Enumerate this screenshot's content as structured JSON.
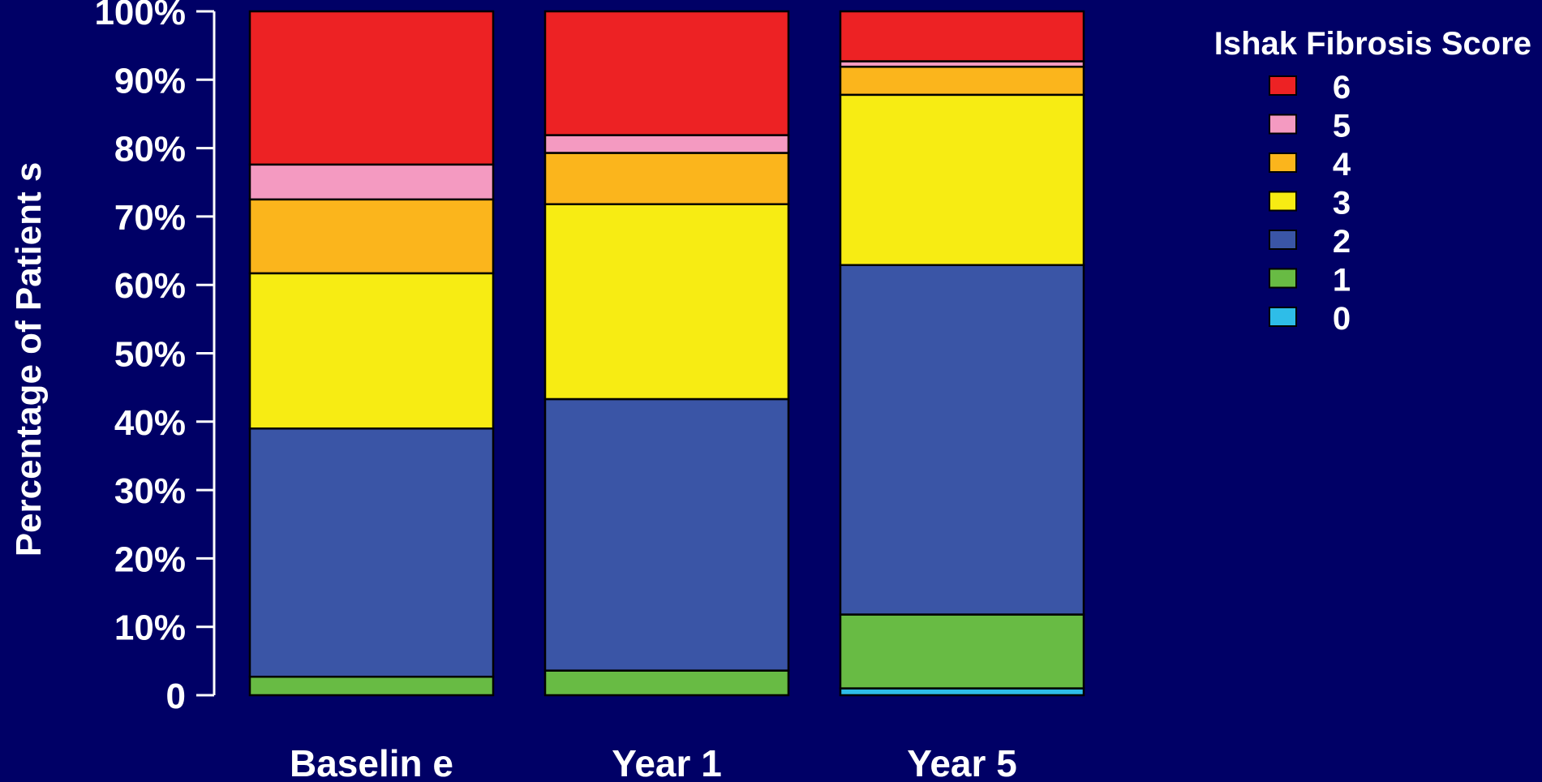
{
  "chart_data": {
    "type": "bar",
    "stacked": true,
    "categories": [
      "Baselin e",
      "Year 1",
      "Year 5"
    ],
    "series": [
      {
        "name": "0",
        "color": "#2ebde8",
        "values": [
          0.0,
          0.0,
          1.0
        ]
      },
      {
        "name": "1",
        "color": "#68bb44",
        "values": [
          2.7,
          3.6,
          10.8
        ]
      },
      {
        "name": "2",
        "color": "#3a55a6",
        "values": [
          36.3,
          39.7,
          51.1
        ]
      },
      {
        "name": "3",
        "color": "#f7ec13",
        "values": [
          22.7,
          28.5,
          24.9
        ]
      },
      {
        "name": "4",
        "color": "#fbb51c",
        "values": [
          10.8,
          7.5,
          4.1
        ]
      },
      {
        "name": "5",
        "color": "#f49ac1",
        "values": [
          5.1,
          2.6,
          0.8
        ]
      },
      {
        "name": "6",
        "color": "#ed2224",
        "values": [
          22.4,
          18.1,
          7.3
        ]
      }
    ],
    "y_ticks": [
      "0",
      "10%",
      "20%",
      "30%",
      "40%",
      "50%",
      "60%",
      "70%",
      "80%",
      "90%",
      "100%"
    ],
    "ylim": [
      0,
      100
    ],
    "ylabel": "Percentage of Patient s",
    "xlabel": "",
    "legend_title": "Ishak Fibrosis Score",
    "legend_position": "top-right",
    "grid": false,
    "background_color": "#000066",
    "axis_color": "#ffffff",
    "bar_outline_color": "#000000"
  }
}
